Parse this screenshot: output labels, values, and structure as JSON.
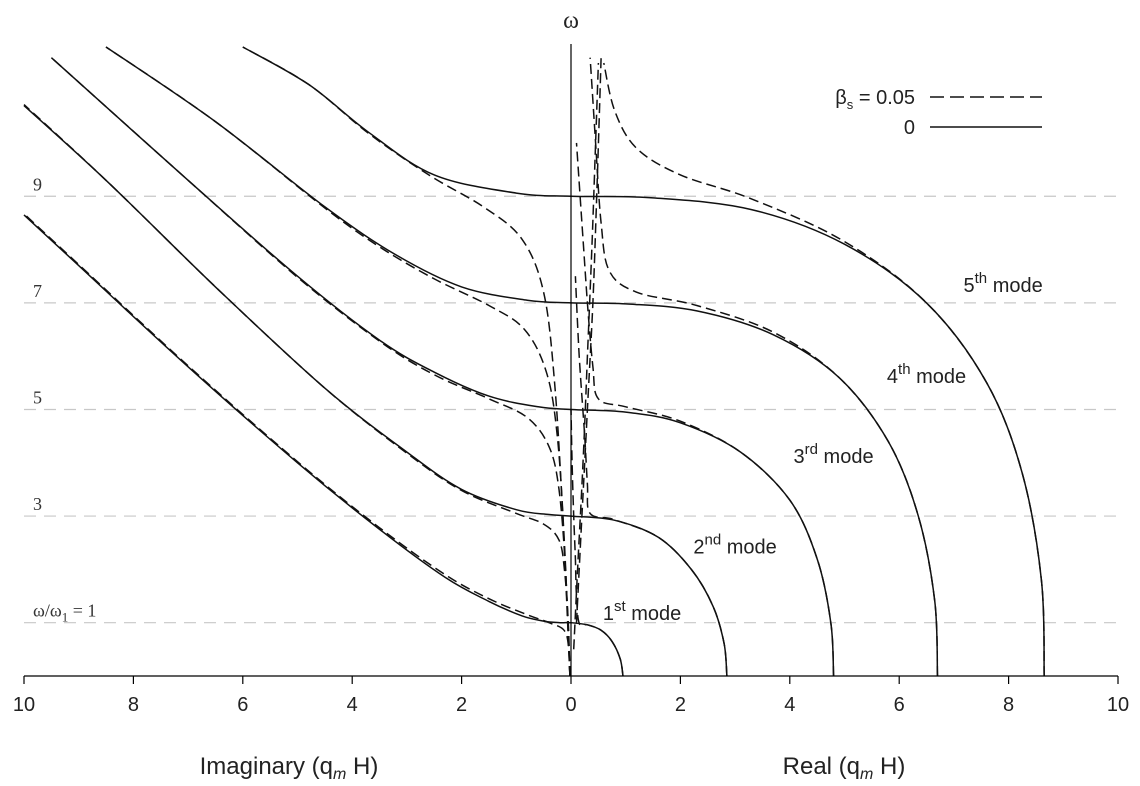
{
  "chart_data": {
    "type": "line",
    "y_symbol": "ω",
    "x_ticks": [
      "10",
      "8",
      "6",
      "4",
      "2",
      "0",
      "2",
      "4",
      "6",
      "8",
      "10"
    ],
    "x_range": [
      -10,
      10
    ],
    "y_range": [
      0,
      11.8
    ],
    "gridlines_y": [
      1,
      3,
      5,
      7,
      9
    ],
    "y_tick_labels": [
      {
        "value": 9,
        "text": "9"
      },
      {
        "value": 7,
        "text": "7"
      },
      {
        "value": 5,
        "text": "5"
      },
      {
        "value": 3,
        "text": "3"
      },
      {
        "value": 1,
        "text": "ω/ω",
        "sub": "1",
        "rest": " = 1"
      }
    ],
    "xlabel_left": {
      "main": "Imaginary (q",
      "sub": "m",
      "rest": " H)"
    },
    "xlabel_right": {
      "main": "Real (q",
      "sub": "m",
      "rest": " H)"
    },
    "legend": {
      "position": "top-right",
      "entries": [
        {
          "symbol": "β",
          "sub": "s",
          "text": " = 0.05",
          "style": "dashed"
        },
        {
          "text": "0",
          "style": "solid"
        }
      ]
    },
    "mode_labels": [
      {
        "sup_base": "1",
        "sup": "st",
        "rest": " mode",
        "x": 1.3,
        "y": 1.05
      },
      {
        "sup_base": "2",
        "sup": "nd",
        "rest": " mode",
        "x": 3.0,
        "y": 2.3
      },
      {
        "sup_base": "3",
        "sup": "rd",
        "rest": " mode",
        "x": 4.8,
        "y": 4.0
      },
      {
        "sup_base": "4",
        "sup": "th",
        "rest": " mode",
        "x": 6.5,
        "y": 5.5
      },
      {
        "sup_base": "5",
        "sup": "th",
        "rest": " mode",
        "x": 7.9,
        "y": 7.2
      }
    ],
    "series": [
      {
        "style": "solid",
        "points": [
          [
            0.95,
            0
          ],
          [
            0.9,
            0.32
          ],
          [
            0.75,
            0.65
          ],
          [
            0.55,
            0.86
          ],
          [
            0.3,
            0.96
          ],
          [
            0,
            1
          ],
          [
            -0.2,
            1.0
          ],
          [
            -0.5,
            1.03
          ],
          [
            -0.9,
            1.13
          ],
          [
            -1.5,
            1.4
          ],
          [
            -2.3,
            1.85
          ],
          [
            -3.5,
            2.75
          ],
          [
            -5,
            4
          ],
          [
            -7,
            5.8
          ],
          [
            -9,
            7.7
          ],
          [
            -10,
            8.65
          ]
        ]
      },
      {
        "style": "solid",
        "points": [
          [
            2.85,
            0
          ],
          [
            2.8,
            0.6
          ],
          [
            2.6,
            1.3
          ],
          [
            2.2,
            2.0
          ],
          [
            1.6,
            2.6
          ],
          [
            0.8,
            2.92
          ],
          [
            0,
            3
          ],
          [
            -0.4,
            3.03
          ],
          [
            -1,
            3.12
          ],
          [
            -2,
            3.5
          ],
          [
            -3,
            4.2
          ],
          [
            -4.5,
            5.4
          ],
          [
            -6.5,
            7.3
          ],
          [
            -8.5,
            9.3
          ],
          [
            -10,
            10.7
          ]
        ]
      },
      {
        "style": "solid",
        "points": [
          [
            4.8,
            0
          ],
          [
            4.75,
            1.0
          ],
          [
            4.5,
            2.2
          ],
          [
            4,
            3.3
          ],
          [
            3.1,
            4.2
          ],
          [
            2,
            4.75
          ],
          [
            1,
            4.95
          ],
          [
            0,
            5
          ],
          [
            -0.6,
            5.05
          ],
          [
            -1.5,
            5.25
          ],
          [
            -2.5,
            5.7
          ],
          [
            -3.5,
            6.3
          ],
          [
            -5,
            7.5
          ],
          [
            -7,
            9.3
          ],
          [
            -9.5,
            11.6
          ]
        ]
      },
      {
        "style": "solid",
        "points": [
          [
            6.7,
            0
          ],
          [
            6.65,
            1.4
          ],
          [
            6.35,
            3.0
          ],
          [
            5.8,
            4.4
          ],
          [
            4.9,
            5.6
          ],
          [
            3.7,
            6.4
          ],
          [
            2.3,
            6.85
          ],
          [
            1,
            6.98
          ],
          [
            0,
            7
          ],
          [
            -0.8,
            7.05
          ],
          [
            -2,
            7.3
          ],
          [
            -3.2,
            7.9
          ],
          [
            -4.5,
            8.8
          ],
          [
            -6.5,
            10.4
          ],
          [
            -8.5,
            11.8
          ]
        ]
      },
      {
        "style": "solid",
        "points": [
          [
            8.65,
            0
          ],
          [
            8.6,
            1.8
          ],
          [
            8.25,
            3.8
          ],
          [
            7.6,
            5.5
          ],
          [
            6.5,
            7.0
          ],
          [
            5,
            8.1
          ],
          [
            3.3,
            8.75
          ],
          [
            1.5,
            8.97
          ],
          [
            0,
            9
          ],
          [
            -1,
            9.06
          ],
          [
            -2.5,
            9.4
          ],
          [
            -3.7,
            10.2
          ],
          [
            -4.8,
            11.1
          ],
          [
            -6,
            11.8
          ]
        ]
      },
      {
        "style": "dashed",
        "points": [
          [
            -0.02,
            0
          ],
          [
            -0.04,
            0.5
          ],
          [
            -0.12,
            0.85
          ],
          [
            -0.4,
            1.0
          ],
          [
            -0.8,
            1.15
          ],
          [
            -1.5,
            1.45
          ],
          [
            -2.3,
            1.9
          ],
          [
            -3.5,
            2.78
          ],
          [
            -5,
            4.02
          ],
          [
            -7,
            5.82
          ],
          [
            -9,
            7.72
          ],
          [
            -10,
            8.67
          ]
        ]
      },
      {
        "style": "dashed",
        "points": [
          [
            -0.02,
            0
          ],
          [
            -0.05,
            1.0
          ],
          [
            -0.12,
            2.0
          ],
          [
            -0.22,
            2.55
          ],
          [
            -0.5,
            2.85
          ],
          [
            -1,
            3.05
          ],
          [
            -2,
            3.48
          ],
          [
            -3,
            4.18
          ],
          [
            -4.5,
            5.4
          ],
          [
            -6.5,
            7.3
          ],
          [
            -8.5,
            9.3
          ],
          [
            -10,
            10.72
          ]
        ]
      },
      {
        "style": "dashed",
        "points": [
          [
            -0.02,
            0
          ],
          [
            -0.1,
            2.0
          ],
          [
            -0.22,
            3.5
          ],
          [
            -0.4,
            4.3
          ],
          [
            -0.8,
            4.85
          ],
          [
            -1.5,
            5.2
          ],
          [
            -2.5,
            5.65
          ],
          [
            -3.5,
            6.28
          ],
          [
            -5,
            7.48
          ],
          [
            -7,
            9.3
          ],
          [
            -9.5,
            11.6
          ]
        ]
      },
      {
        "style": "dashed",
        "points": [
          [
            -0.02,
            0
          ],
          [
            -0.12,
            2.5
          ],
          [
            -0.25,
            4.5
          ],
          [
            -0.45,
            5.7
          ],
          [
            -0.85,
            6.5
          ],
          [
            -1.5,
            6.95
          ],
          [
            -2.5,
            7.45
          ],
          [
            -3.5,
            8.05
          ],
          [
            -4.5,
            8.78
          ],
          [
            -6.5,
            10.4
          ],
          [
            -8.5,
            11.8
          ]
        ]
      },
      {
        "style": "dashed",
        "points": [
          [
            -0.02,
            0
          ],
          [
            -0.15,
            3.0
          ],
          [
            -0.3,
            5.5
          ],
          [
            -0.5,
            7.2
          ],
          [
            -0.9,
            8.2
          ],
          [
            -1.6,
            8.8
          ],
          [
            -2.6,
            9.4
          ],
          [
            -3.7,
            10.18
          ],
          [
            -4.8,
            11.1
          ],
          [
            -6,
            11.8
          ]
        ]
      },
      {
        "style": "dashed",
        "points": [
          [
            0.95,
            0
          ],
          [
            0.9,
            0.32
          ],
          [
            0.75,
            0.65
          ],
          [
            0.55,
            0.86
          ],
          [
            0.3,
            0.96
          ],
          [
            0.15,
            0.99
          ],
          [
            0.1,
            1.5
          ],
          [
            0.08,
            2.2
          ],
          [
            0.05,
            3.0
          ],
          [
            0.02,
            4.0
          ],
          [
            0,
            5.0
          ]
        ]
      },
      {
        "style": "dashed",
        "points": [
          [
            2.85,
            0
          ],
          [
            2.8,
            0.6
          ],
          [
            2.6,
            1.3
          ],
          [
            2.2,
            2.0
          ],
          [
            1.6,
            2.6
          ],
          [
            0.8,
            2.93
          ],
          [
            0.35,
            3.05
          ],
          [
            0.3,
            3.6
          ],
          [
            0.25,
            4.5
          ],
          [
            0.15,
            6.0
          ],
          [
            0.08,
            7.5
          ]
        ]
      },
      {
        "style": "dashed",
        "points": [
          [
            4.8,
            0
          ],
          [
            4.75,
            1.0
          ],
          [
            4.5,
            2.2
          ],
          [
            4,
            3.3
          ],
          [
            3.1,
            4.2
          ],
          [
            2,
            4.78
          ],
          [
            1,
            5.05
          ],
          [
            0.5,
            5.2
          ],
          [
            0.4,
            5.8
          ],
          [
            0.3,
            7.0
          ],
          [
            0.2,
            8.5
          ],
          [
            0.1,
            10.0
          ]
        ]
      },
      {
        "style": "dashed",
        "points": [
          [
            6.7,
            0
          ],
          [
            6.65,
            1.4
          ],
          [
            6.35,
            3.0
          ],
          [
            5.8,
            4.4
          ],
          [
            4.9,
            5.6
          ],
          [
            3.7,
            6.45
          ],
          [
            2.3,
            6.95
          ],
          [
            1.2,
            7.2
          ],
          [
            0.7,
            7.6
          ],
          [
            0.55,
            8.5
          ],
          [
            0.45,
            10.0
          ],
          [
            0.35,
            11.6
          ]
        ]
      },
      {
        "style": "dashed",
        "points": [
          [
            8.65,
            0
          ],
          [
            8.6,
            1.8
          ],
          [
            8.25,
            3.8
          ],
          [
            7.6,
            5.5
          ],
          [
            6.5,
            7.0
          ],
          [
            5,
            8.15
          ],
          [
            3.3,
            8.95
          ],
          [
            2.0,
            9.4
          ],
          [
            1.2,
            9.9
          ],
          [
            0.8,
            10.6
          ],
          [
            0.6,
            11.5
          ]
        ]
      },
      {
        "style": "dashed",
        "points": [
          [
            0.05,
            0.5
          ],
          [
            0.12,
            2.0
          ],
          [
            0.22,
            4.0
          ],
          [
            0.3,
            6.0
          ],
          [
            0.38,
            8.0
          ],
          [
            0.45,
            10.0
          ],
          [
            0.5,
            11.5
          ]
        ]
      },
      {
        "style": "dashed",
        "points": [
          [
            0.1,
            1.0
          ],
          [
            0.2,
            3.0
          ],
          [
            0.3,
            5.0
          ],
          [
            0.4,
            7.0
          ],
          [
            0.47,
            9.0
          ],
          [
            0.55,
            11.6
          ]
        ]
      }
    ]
  }
}
